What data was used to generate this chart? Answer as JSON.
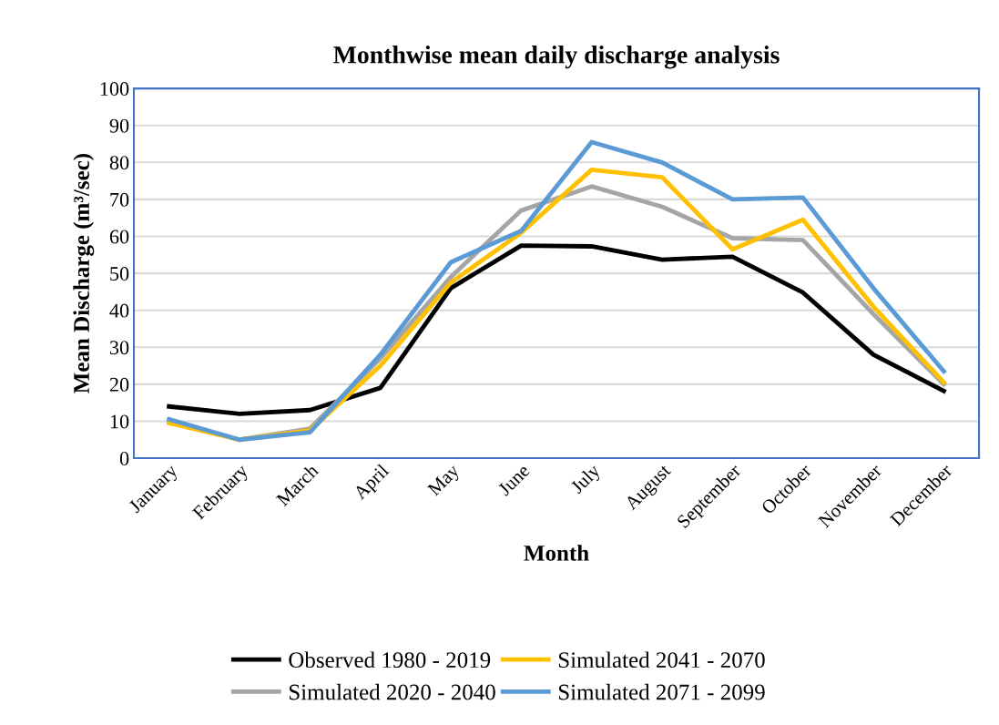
{
  "chart_data": {
    "type": "line",
    "title": "Monthwise mean daily discharge analysis",
    "xlabel": "Month",
    "ylabel": "Mean Discharge (m³/sec)",
    "categories": [
      "January",
      "February",
      "March",
      "April",
      "May",
      "June",
      "July",
      "August",
      "September",
      "October",
      "November",
      "December"
    ],
    "series": [
      {
        "name": "Observed 1980 - 2019",
        "color": "#000000",
        "values": [
          14,
          12,
          13,
          19,
          46,
          57.5,
          57.3,
          53.7,
          54.5,
          44.8,
          28,
          18.2
        ]
      },
      {
        "name": "Simulated 2020 - 2040",
        "color": "#a5a5a5",
        "values": [
          10,
          5,
          8,
          27,
          49,
          67,
          73.5,
          68,
          59.5,
          59,
          39,
          20
        ]
      },
      {
        "name": "Simulated 2041 - 2070",
        "color": "#ffc000",
        "values": [
          9.5,
          5,
          7.5,
          25,
          47.5,
          61,
          78,
          76,
          56.5,
          64.5,
          41,
          20.5
        ]
      },
      {
        "name": "Simulated 2071 - 2099",
        "color": "#5b9bd5",
        "values": [
          10.5,
          5,
          7,
          28,
          53,
          61.5,
          85.5,
          80,
          70,
          70.5,
          46,
          23.5
        ]
      }
    ],
    "ylim": [
      0,
      100
    ],
    "yticks": [
      0,
      10,
      20,
      30,
      40,
      50,
      60,
      70,
      80,
      90,
      100
    ],
    "grid": "y",
    "legend": "bottom",
    "marker": "none",
    "line_style": "solid"
  }
}
